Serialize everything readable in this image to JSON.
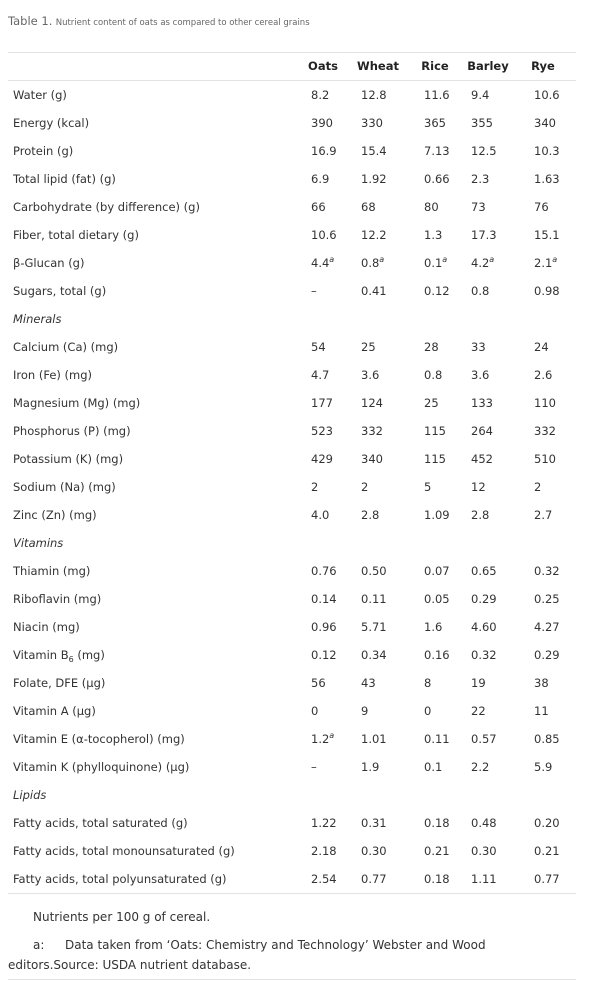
{
  "caption": {
    "label": "Table 1.",
    "text": "Nutrient content of oats as compared to other cereal grains"
  },
  "table": {
    "columns": [
      "Oats",
      "Wheat",
      "Rice",
      "Barley",
      "Rye"
    ],
    "rows": [
      {
        "label": "Water (g)",
        "cells": [
          "8.2",
          "12.8",
          "11.6",
          "9.4",
          "10.6"
        ]
      },
      {
        "label": "Energy (kcal)",
        "cells": [
          "390",
          "330",
          "365",
          "355",
          "340"
        ]
      },
      {
        "label": "Protein (g)",
        "cells": [
          "16.9",
          "15.4",
          "7.13",
          "12.5",
          "10.3"
        ]
      },
      {
        "label": "Total lipid (fat) (g)",
        "cells": [
          "6.9",
          "1.92",
          "0.66",
          "2.3",
          "1.63"
        ]
      },
      {
        "label": "Carbohydrate (by difference) (g)",
        "cells": [
          "66",
          "68",
          "80",
          "73",
          "76"
        ]
      },
      {
        "label": "Fiber, total dietary (g)",
        "cells": [
          "10.6",
          "12.2",
          "1.3",
          "17.3",
          "15.1"
        ]
      },
      {
        "label": "β-Glucan (g)",
        "cells": [
          {
            "text": "4.4",
            "sup": "a"
          },
          {
            "text": "0.8",
            "sup": "a"
          },
          {
            "text": "0.1",
            "sup": "a"
          },
          {
            "text": "4.2",
            "sup": "a"
          },
          {
            "text": "2.1",
            "sup": "a"
          }
        ]
      },
      {
        "label": "Sugars, total (g)",
        "cells": [
          "–",
          "0.41",
          "0.12",
          "0.8",
          "0.98"
        ]
      },
      {
        "section": "Minerals"
      },
      {
        "label": "Calcium (Ca) (mg)",
        "cells": [
          "54",
          "25",
          "28",
          "33",
          "24"
        ]
      },
      {
        "label": "Iron (Fe) (mg)",
        "cells": [
          "4.7",
          "3.6",
          "0.8",
          "3.6",
          "2.6"
        ]
      },
      {
        "label": "Magnesium (Mg) (mg)",
        "cells": [
          "177",
          "124",
          "25",
          "133",
          "110"
        ]
      },
      {
        "label": "Phosphorus (P) (mg)",
        "cells": [
          "523",
          "332",
          "115",
          "264",
          "332"
        ]
      },
      {
        "label": "Potassium (K) (mg)",
        "cells": [
          "429",
          "340",
          "115",
          "452",
          "510"
        ]
      },
      {
        "label": "Sodium (Na) (mg)",
        "cells": [
          "2",
          "2",
          "5",
          "12",
          "2"
        ]
      },
      {
        "label": "Zinc (Zn) (mg)",
        "cells": [
          "4.0",
          "2.8",
          "1.09",
          "2.8",
          "2.7"
        ]
      },
      {
        "section": "Vitamins"
      },
      {
        "label": "Thiamin (mg)",
        "cells": [
          "0.76",
          "0.50",
          "0.07",
          "0.65",
          "0.32"
        ]
      },
      {
        "label": "Riboflavin (mg)",
        "cells": [
          "0.14",
          "0.11",
          "0.05",
          "0.29",
          "0.25"
        ]
      },
      {
        "label": "Niacin (mg)",
        "cells": [
          "0.96",
          "5.71",
          "1.6",
          "4.60",
          "4.27"
        ]
      },
      {
        "label": {
          "text": "Vitamin B",
          "sub": "6",
          "after": " (mg)"
        },
        "cells": [
          "0.12",
          "0.34",
          "0.16",
          "0.32",
          "0.29"
        ]
      },
      {
        "label": "Folate, DFE (μg)",
        "cells": [
          "56",
          "43",
          "8",
          "19",
          "38"
        ]
      },
      {
        "label": "Vitamin A (μg)",
        "cells": [
          "0",
          "9",
          "0",
          "22",
          "11"
        ]
      },
      {
        "label": "Vitamin E (α-tocopherol) (mg)",
        "cells": [
          {
            "text": "1.2",
            "sup": "a"
          },
          "1.01",
          "0.11",
          "0.57",
          "0.85"
        ]
      },
      {
        "label": "Vitamin K (phylloquinone) (μg)",
        "cells": [
          "–",
          "1.9",
          "0.1",
          "2.2",
          "5.9"
        ]
      },
      {
        "section": "Lipids"
      },
      {
        "label": "Fatty acids, total saturated (g)",
        "cells": [
          "1.22",
          "0.31",
          "0.18",
          "0.48",
          "0.20"
        ]
      },
      {
        "label": "Fatty acids, total monounsaturated (g)",
        "cells": [
          "2.18",
          "0.30",
          "0.21",
          "0.30",
          "0.21"
        ]
      },
      {
        "label": "Fatty acids, total polyunsaturated (g)",
        "cells": [
          "2.54",
          "0.77",
          "0.18",
          "1.11",
          "0.77"
        ]
      }
    ]
  },
  "footnotes": {
    "note": "Nutrients per 100 g of cereal.",
    "a": {
      "mark": "a:",
      "text": "Data taken from ‘Oats: Chemistry and Technology’ Webster and Wood editors.",
      "source": "Source: USDA nutrient database."
    }
  }
}
